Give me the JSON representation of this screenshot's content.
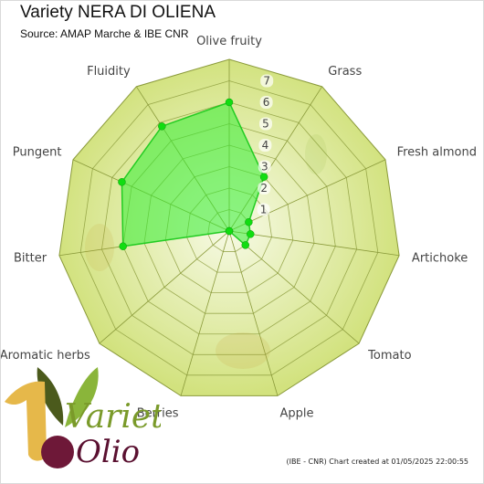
{
  "header": {
    "title": "Variety NERA DI OLIENA",
    "subtitle": "Source: AMAP Marche & IBE CNR"
  },
  "footer": {
    "credit": "(IBE - CNR) Chart created at 01/05/2025 22:00:55"
  },
  "logo": {
    "word1": "Varietà",
    "word2": "Olio",
    "number": "1"
  },
  "colors": {
    "ring_fill": "#d6e58a",
    "ring_stroke": "#8a9a3a",
    "series_fill": "#33ee33",
    "series_stroke": "#22cc22",
    "marker": "#11dd11"
  },
  "chart_data": {
    "type": "radar",
    "title": "Variety NERA DI OLIENA",
    "subtitle": "Source: AMAP Marche & IBE CNR",
    "categories": [
      "Olive fruity",
      "Grass",
      "Fresh almond",
      "Artichoke",
      "Tomato",
      "Apple",
      "Berries",
      "Aromatic herbs",
      "Bitter",
      "Pungent",
      "Fluidity"
    ],
    "series": [
      {
        "values": [
          6.0,
          3.0,
          1.0,
          1.0,
          1.0,
          0.0,
          0.0,
          0.0,
          5.0,
          5.5,
          5.8
        ]
      }
    ],
    "rlim": [
      0,
      8
    ],
    "ticks": [
      "1",
      "2",
      "3",
      "4",
      "5",
      "6",
      "7"
    ],
    "grid": true,
    "legend": "none"
  }
}
